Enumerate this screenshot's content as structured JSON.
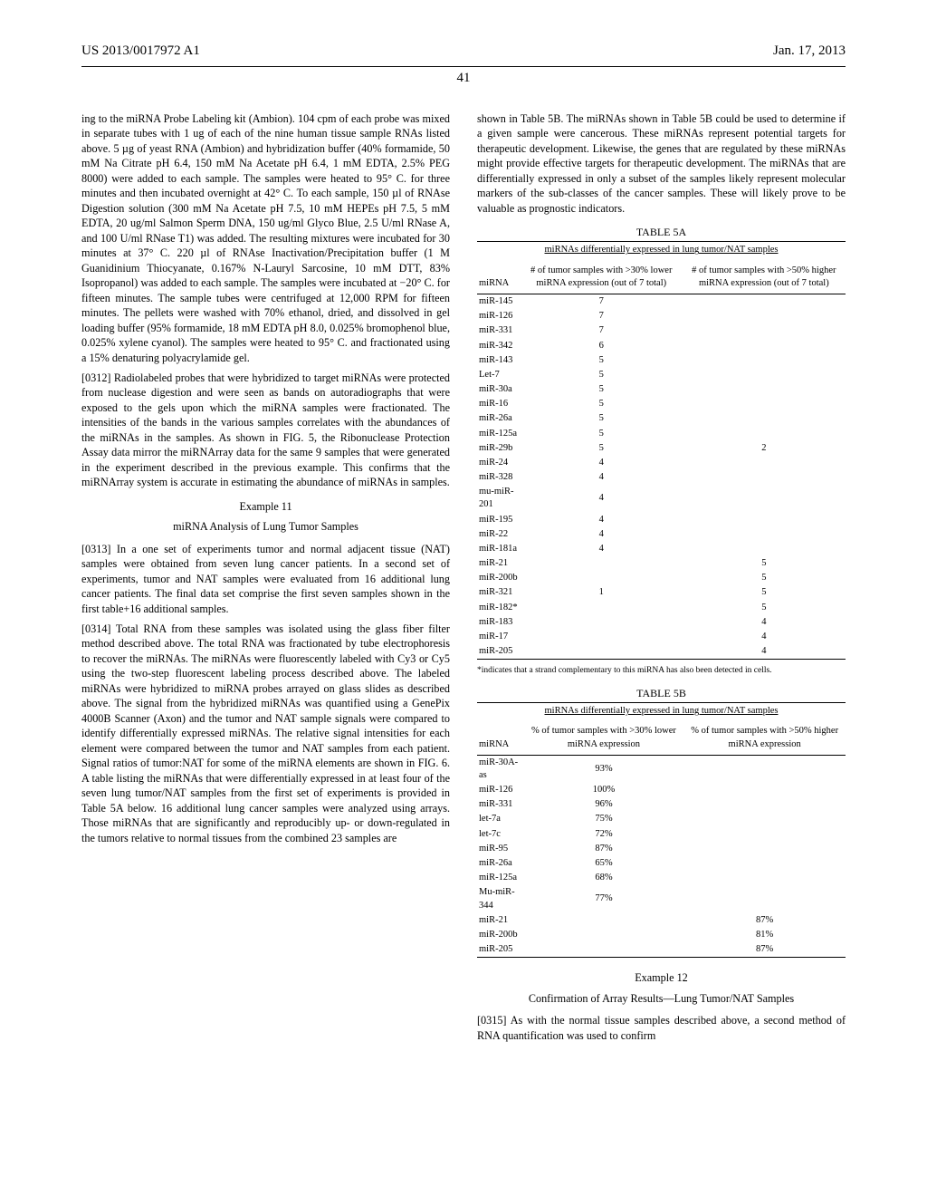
{
  "header": {
    "pub_number": "US 2013/0017972 A1",
    "pub_date": "Jan. 17, 2013",
    "page_number": "41"
  },
  "left_col": {
    "para1": "ing to the miRNA Probe Labeling kit (Ambion). 104 cpm of each probe was mixed in separate tubes with 1 ug of each of the nine human tissue sample RNAs listed above. 5 µg of yeast RNA (Ambion) and hybridization buffer (40% formamide, 50 mM Na Citrate pH 6.4, 150 mM Na Acetate pH 6.4, 1 mM EDTA, 2.5% PEG 8000) were added to each sample. The samples were heated to 95° C. for three minutes and then incubated overnight at 42° C. To each sample, 150 µl of RNAse Digestion solution (300 mM Na Acetate pH 7.5, 10 mM HEPEs pH 7.5, 5 mM EDTA, 20 ug/ml Salmon Sperm DNA, 150 ug/ml Glyco Blue, 2.5 U/ml RNase A, and 100 U/ml RNase T1) was added. The resulting mixtures were incubated for 30 minutes at 37° C. 220 µl of RNAse Inactivation/Precipitation buffer (1 M Guanidinium Thiocyanate, 0.167% N-Lauryl Sarcosine, 10 mM DTT, 83% Isopropanol) was added to each sample. The samples were incubated at −20° C. for fifteen minutes. The sample tubes were centrifuged at 12,000 RPM for fifteen minutes. The pellets were washed with 70% ethanol, dried, and dissolved in gel loading buffer (95% formamide, 18 mM EDTA pH 8.0, 0.025% bromophenol blue, 0.025% xylene cyanol). The samples were heated to 95° C. and fractionated using a 15% denaturing polyacrylamide gel.",
    "para2_num": "[0312]",
    "para2": "   Radiolabeled probes that were hybridized to target miRNAs were protected from nuclease digestion and were seen as bands on autoradiographs that were exposed to the gels upon which the miRNA samples were fractionated. The intensities of the bands in the various samples correlates with the abundances of the miRNAs in the samples. As shown in FIG. 5, the Ribonuclease Protection Assay data mirror the miRNArray data for the same 9 samples that were generated in the experiment described in the previous example. This confirms that the miRNArray system is accurate in estimating the abundance of miRNAs in samples.",
    "example11_label": "Example 11",
    "example11_title": "miRNA Analysis of Lung Tumor Samples",
    "para3_num": "[0313]",
    "para3": "   In a one set of experiments tumor and normal adjacent tissue (NAT) samples were obtained from seven lung cancer patients. In a second set of experiments, tumor and NAT samples were evaluated from 16 additional lung cancer patients. The final data set comprise the first seven samples shown in the first table+16 additional samples.",
    "para4_num": "[0314]",
    "para4": "   Total RNA from these samples was isolated using the glass fiber filter method described above. The total RNA was fractionated by tube electrophoresis to recover the miRNAs. The miRNAs were fluorescently labeled with Cy3 or Cy5 using the two-step fluorescent labeling process described above. The labeled miRNAs were hybridized to miRNA probes arrayed on glass slides as described above. The signal from the hybridized miRNAs was quantified using a GenePix 4000B Scanner (Axon) and the tumor and NAT sample signals were compared to identify differentially expressed miRNAs. The relative signal intensities for each element were compared between the tumor and NAT samples from each patient. Signal ratios of tumor:NAT for some of the miRNA elements are shown in FIG. 6. A table listing the miRNAs that were differentially expressed in at least four of the seven lung tumor/NAT samples from the first set of experiments is provided in Table 5A below. 16 additional lung cancer samples were analyzed using arrays. Those miRNAs that are significantly and reproducibly up- or down-regulated in the tumors relative to normal tissues from the combined 23 samples are"
  },
  "right_col": {
    "para5": "shown in Table 5B. The miRNAs shown in Table 5B could be used to determine if a given sample were cancerous. These miRNAs represent potential targets for therapeutic development. Likewise, the genes that are regulated by these miRNAs might provide effective targets for therapeutic development. The miRNAs that are differentially expressed in only a subset of the samples likely represent molecular markers of the sub-classes of the cancer samples. These will likely prove to be valuable as prognostic indicators.",
    "table5a": {
      "label": "TABLE 5A",
      "caption": "miRNAs differentially expressed in lung tumor/NAT samples",
      "cols": [
        "miRNA",
        "# of tumor samples with >30% lower miRNA expression (out of 7 total)",
        "# of tumor samples with >50% higher miRNA expression (out of 7 total)"
      ],
      "rows": [
        [
          "miR-145",
          "7",
          ""
        ],
        [
          "miR-126",
          "7",
          ""
        ],
        [
          "miR-331",
          "7",
          ""
        ],
        [
          "miR-342",
          "6",
          ""
        ],
        [
          "miR-143",
          "5",
          ""
        ],
        [
          "Let-7",
          "5",
          ""
        ],
        [
          "miR-30a",
          "5",
          ""
        ],
        [
          "miR-16",
          "5",
          ""
        ],
        [
          "miR-26a",
          "5",
          ""
        ],
        [
          "miR-125a",
          "5",
          ""
        ],
        [
          "miR-29b",
          "5",
          "2"
        ],
        [
          "miR-24",
          "4",
          ""
        ],
        [
          "miR-328",
          "4",
          ""
        ],
        [
          "mu-miR-201",
          "4",
          ""
        ],
        [
          "miR-195",
          "4",
          ""
        ],
        [
          "miR-22",
          "4",
          ""
        ],
        [
          "miR-181a",
          "4",
          ""
        ],
        [
          "miR-21",
          "",
          "5"
        ],
        [
          "miR-200b",
          "",
          "5"
        ],
        [
          "miR-321",
          "1",
          "5"
        ],
        [
          "miR-182*",
          "",
          "5"
        ],
        [
          "miR-183",
          "",
          "4"
        ],
        [
          "miR-17",
          "",
          "4"
        ],
        [
          "miR-205",
          "",
          "4"
        ]
      ],
      "footnote": "*indicates that a strand complementary to this miRNA has also been detected in cells."
    },
    "table5b": {
      "label": "TABLE 5B",
      "caption": "miRNAs differentially expressed in lung tumor/NAT samples",
      "cols": [
        "miRNA",
        "% of tumor samples with >30% lower miRNA expression",
        "% of tumor samples with >50% higher miRNA expression"
      ],
      "rows": [
        [
          "miR-30A-as",
          "93%",
          ""
        ],
        [
          "miR-126",
          "100%",
          ""
        ],
        [
          "miR-331",
          "96%",
          ""
        ],
        [
          "let-7a",
          "75%",
          ""
        ],
        [
          "let-7c",
          "72%",
          ""
        ],
        [
          "miR-95",
          "87%",
          ""
        ],
        [
          "miR-26a",
          "65%",
          ""
        ],
        [
          "miR-125a",
          "68%",
          ""
        ],
        [
          "Mu-miR-344",
          "77%",
          ""
        ],
        [
          "miR-21",
          "",
          "87%"
        ],
        [
          "miR-200b",
          "",
          "81%"
        ],
        [
          "miR-205",
          "",
          "87%"
        ]
      ]
    },
    "example12_label": "Example 12",
    "example12_title": "Confirmation of Array Results—Lung Tumor/NAT Samples",
    "para6_num": "[0315]",
    "para6": "   As with the normal tissue samples described above, a second method of RNA quantification was used to confirm"
  }
}
